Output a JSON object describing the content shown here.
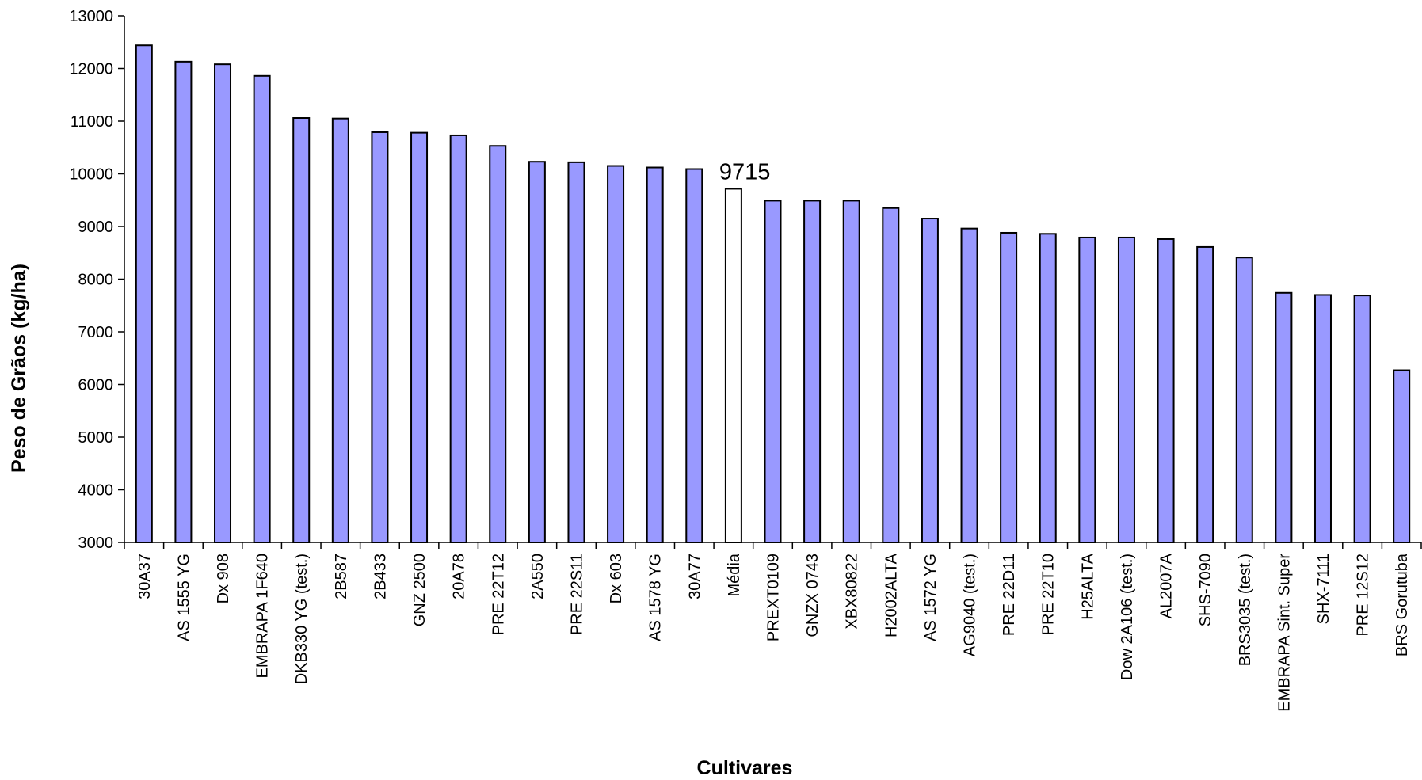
{
  "chart_data": {
    "type": "bar",
    "title": "",
    "xlabel": "Cultivares",
    "ylabel": "Peso de Grãos (kg/ha)",
    "ylim": [
      3000,
      13000
    ],
    "yticks": [
      3000,
      4000,
      5000,
      6000,
      7000,
      8000,
      9000,
      10000,
      11000,
      12000,
      13000
    ],
    "grid": false,
    "legend": "none",
    "colors": {
      "bar_fill": "#9999ff",
      "highlight_fill": "#ffffff",
      "bar_stroke": "#000000",
      "axis": "#000000"
    },
    "highlight_category": "Média",
    "annotations": [
      {
        "category": "Média",
        "text": "9715"
      }
    ],
    "categories": [
      "30A37",
      "AS 1555 YG",
      "Dx 908",
      "EMBRAPA 1F640",
      "DKB330 YG  (test.)",
      "2B587",
      "2B433",
      "GNZ 2500",
      "20A78",
      "PRE 22T12",
      "2A550",
      "PRE 22S11",
      "Dx 603",
      "AS 1578 YG",
      "30A77",
      "Média",
      "PREXT0109",
      "GNZX 0743",
      "XBX80822",
      "H2002ALTA",
      "AS 1572 YG",
      "AG9040  (test.)",
      "PRE 22D11",
      "PRE 22T10",
      "H25ALTA",
      "Dow 2A106  (test.)",
      "AL2007A",
      "SHS-7090",
      "BRS3035  (test.)",
      "EMBRAPA Sint. Super",
      "SHX-7111",
      "PRE 12S12",
      "BRS Gorutuba"
    ],
    "values": [
      12440,
      12130,
      12080,
      11860,
      11060,
      11050,
      10790,
      10780,
      10730,
      10530,
      10230,
      10220,
      10150,
      10120,
      10090,
      9715,
      9490,
      9490,
      9490,
      9350,
      9150,
      8960,
      8880,
      8860,
      8790,
      8790,
      8760,
      8610,
      8410,
      7740,
      7700,
      7690,
      6270
    ]
  }
}
